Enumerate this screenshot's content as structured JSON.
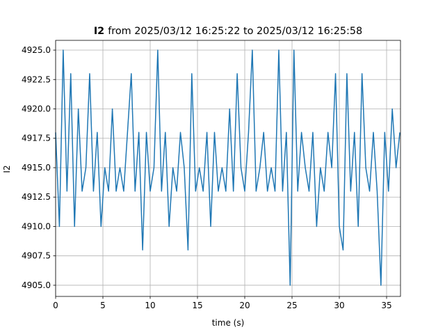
{
  "chart_data": {
    "type": "line",
    "title_bold": "I2",
    "title": "from 2025/03/12 16:25:22 to 2025/03/12 16:25:58",
    "xlabel": "time (s)",
    "ylabel": "I2",
    "color": "#1f77b4",
    "grid": true,
    "xlim": [
      0,
      36.47
    ],
    "xticks": [
      0,
      5,
      10,
      15,
      20,
      25,
      30,
      35
    ],
    "ylim": [
      4904.05,
      4925.83
    ],
    "yticks": [
      {
        "value": 4905,
        "label": "4905.0"
      },
      {
        "value": 4907.5,
        "label": "4907.5"
      },
      {
        "value": 4910,
        "label": "4910.0"
      },
      {
        "value": 4912.5,
        "label": "4912.5"
      },
      {
        "value": 4915,
        "label": "4915.0"
      },
      {
        "value": 4917.5,
        "label": "4917.5"
      },
      {
        "value": 4920,
        "label": "4920.0"
      },
      {
        "value": 4922.5,
        "label": "4922.5"
      },
      {
        "value": 4925,
        "label": "4925.0"
      }
    ],
    "x": [
      0,
      0.4,
      0.8,
      1.2,
      1.6,
      2,
      2.4,
      2.8,
      3.2,
      3.6,
      4,
      4.4,
      4.8,
      5.2,
      5.6,
      6,
      6.4,
      6.8,
      7.2,
      7.6,
      8,
      8.4,
      8.8,
      9.2,
      9.6,
      10,
      10.4,
      10.8,
      11.2,
      11.6,
      12,
      12.4,
      12.8,
      13.2,
      13.6,
      14,
      14.4,
      14.8,
      15.2,
      15.6,
      16,
      16.4,
      16.8,
      17.2,
      17.6,
      18,
      18.4,
      18.8,
      19.2,
      19.6,
      20,
      20.4,
      20.8,
      21.2,
      21.6,
      22,
      22.4,
      22.8,
      23.2,
      23.6,
      24,
      24.4,
      24.8,
      25.2,
      25.6,
      26,
      26.4,
      26.8,
      27.2,
      27.6,
      28,
      28.4,
      28.8,
      29.2,
      29.6,
      30,
      30.4,
      30.8,
      31.2,
      31.6,
      32,
      32.4,
      32.8,
      33.2,
      33.6,
      34,
      34.4,
      34.8,
      35.2,
      35.6,
      36,
      36.4
    ],
    "values": [
      4918,
      4910,
      4925,
      4913,
      4923,
      4910,
      4920,
      4913,
      4915,
      4923,
      4913,
      4918,
      4910,
      4915,
      4913,
      4920,
      4913,
      4915,
      4913,
      4918,
      4923,
      4913,
      4918,
      4908,
      4918,
      4913,
      4915,
      4925,
      4913,
      4918,
      4910,
      4915,
      4913,
      4918,
      4915,
      4908,
      4923,
      4913,
      4915,
      4913,
      4918,
      4910,
      4918,
      4913,
      4915,
      4913,
      4920,
      4913,
      4923,
      4915,
      4913,
      4918,
      4925,
      4913,
      4915,
      4918,
      4913,
      4915,
      4913,
      4925,
      4913,
      4918,
      4905,
      4925,
      4913,
      4918,
      4915,
      4913,
      4918,
      4910,
      4915,
      4913,
      4918,
      4915,
      4923,
      4910,
      4908,
      4923,
      4913,
      4918,
      4910,
      4923,
      4915,
      4913,
      4918,
      4913,
      4905,
      4918,
      4913,
      4920,
      4915,
      4918
    ]
  }
}
